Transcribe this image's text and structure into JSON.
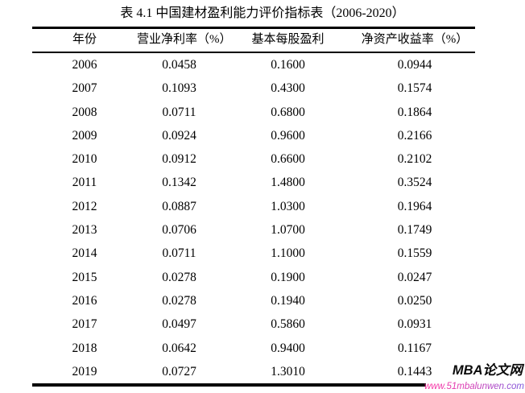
{
  "title": "表 4.1 中国建材盈利能力评价指标表（2006-2020）",
  "table": {
    "columns": [
      "年份",
      "营业净利率（%）",
      "基本每股盈利",
      "净资产收益率（%）"
    ],
    "rows": [
      [
        "2006",
        "0.0458",
        "0.1600",
        "0.0944"
      ],
      [
        "2007",
        "0.1093",
        "0.4300",
        "0.1574"
      ],
      [
        "2008",
        "0.0711",
        "0.6800",
        "0.1864"
      ],
      [
        "2009",
        "0.0924",
        "0.9600",
        "0.2166"
      ],
      [
        "2010",
        "0.0912",
        "0.6600",
        "0.2102"
      ],
      [
        "2011",
        "0.1342",
        "1.4800",
        "0.3524"
      ],
      [
        "2012",
        "0.0887",
        "1.0300",
        "0.1964"
      ],
      [
        "2013",
        "0.0706",
        "1.0700",
        "0.1749"
      ],
      [
        "2014",
        "0.0711",
        "1.1000",
        "0.1559"
      ],
      [
        "2015",
        "0.0278",
        "0.1900",
        "0.0247"
      ],
      [
        "2016",
        "0.0278",
        "0.1940",
        "0.0250"
      ],
      [
        "2017",
        "0.0497",
        "0.5860",
        "0.0931"
      ],
      [
        "2018",
        "0.0642",
        "0.9400",
        "0.1167"
      ],
      [
        "2019",
        "0.0727",
        "1.3010",
        "0.1443"
      ]
    ]
  },
  "watermark": {
    "site_name": "MBA论文网",
    "site_url": "www.51mbalunwen.com",
    "url_color_start": "#ff2fa0",
    "url_color_end": "#7b55dc"
  }
}
